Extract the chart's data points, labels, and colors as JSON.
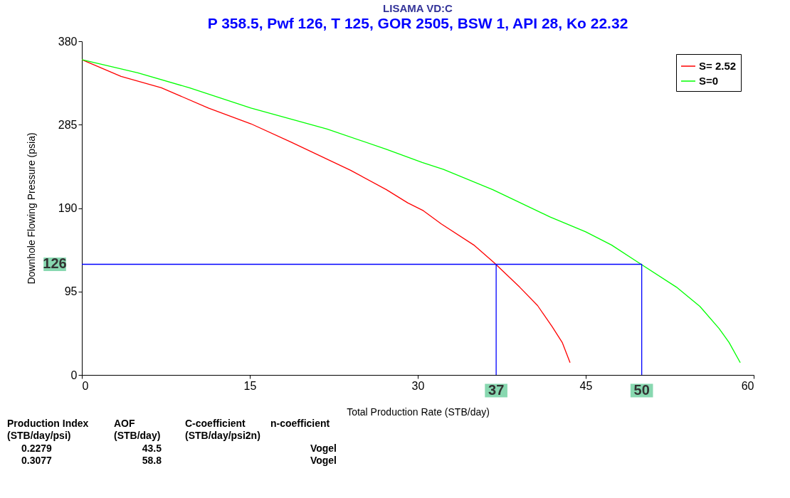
{
  "chart_data": {
    "type": "line",
    "title": "LISAMA VD:C",
    "subtitle": "P 358.5, Pwf 126, T 125, GOR 2505, BSW 1, API 28, Ko 22.32",
    "xlabel": "Total Production Rate (STB/day)",
    "ylabel": "Downhole Flowing Pressure (psia)",
    "xlim": [
      0,
      60
    ],
    "xticks": [
      0,
      15,
      30,
      45,
      60
    ],
    "ylim": [
      0,
      380
    ],
    "yticks": [
      0,
      95,
      190,
      285,
      380
    ],
    "grid": false,
    "legend": "top right",
    "marker": "none",
    "line_style": "solid",
    "series": [
      {
        "name": "S= 2.52",
        "color": "#ff0000",
        "x": [
          0,
          3.5,
          7.1,
          11.3,
          15.1,
          18.7,
          24.0,
          27.2,
          29.1,
          30.5,
          32.1,
          35.0,
          36.8,
          39.1,
          40.7,
          42.0,
          42.9,
          43.6
        ],
        "values": [
          359,
          340,
          327,
          304,
          286,
          265,
          233,
          211,
          196,
          187,
          172,
          148,
          128,
          100,
          79,
          55,
          37,
          14
        ]
      },
      {
        "name": "S=0",
        "color": "#00ff00",
        "x": [
          0,
          5.0,
          9.6,
          15.1,
          21.9,
          27.2,
          30.4,
          32.3,
          36.7,
          41.8,
          45.0,
          47.3,
          49.7,
          53.1,
          55.2,
          56.9,
          57.8,
          58.8
        ],
        "values": [
          359,
          344,
          327,
          304,
          280,
          257,
          242,
          234,
          211,
          180,
          163,
          148,
          128,
          100,
          78,
          53,
          37,
          14
        ]
      },
      {
        "type": "line",
        "color": "#0000ff",
        "x": [
          0,
          50,
          50
        ],
        "values": [
          126,
          126,
          0
        ]
      },
      {
        "type": "line",
        "color": "#0000ff",
        "x": [
          37,
          37
        ],
        "values": [
          126,
          0
        ]
      }
    ],
    "annotations": [
      {
        "text": "126",
        "x": 0,
        "y": 126
      },
      {
        "text": "37",
        "x": 37,
        "y": 0
      },
      {
        "text": "50",
        "x": 50,
        "y": 0
      },
      "Production Index\n(STB/day/psi)",
      "AOF\n(STB/day)",
      "C-coefficient\n(STB/day/psi2n)",
      "n-coefficient",
      "0.2279",
      "43.5",
      "Vogel",
      "0.3077",
      "58.8",
      "Vogel"
    ]
  }
}
